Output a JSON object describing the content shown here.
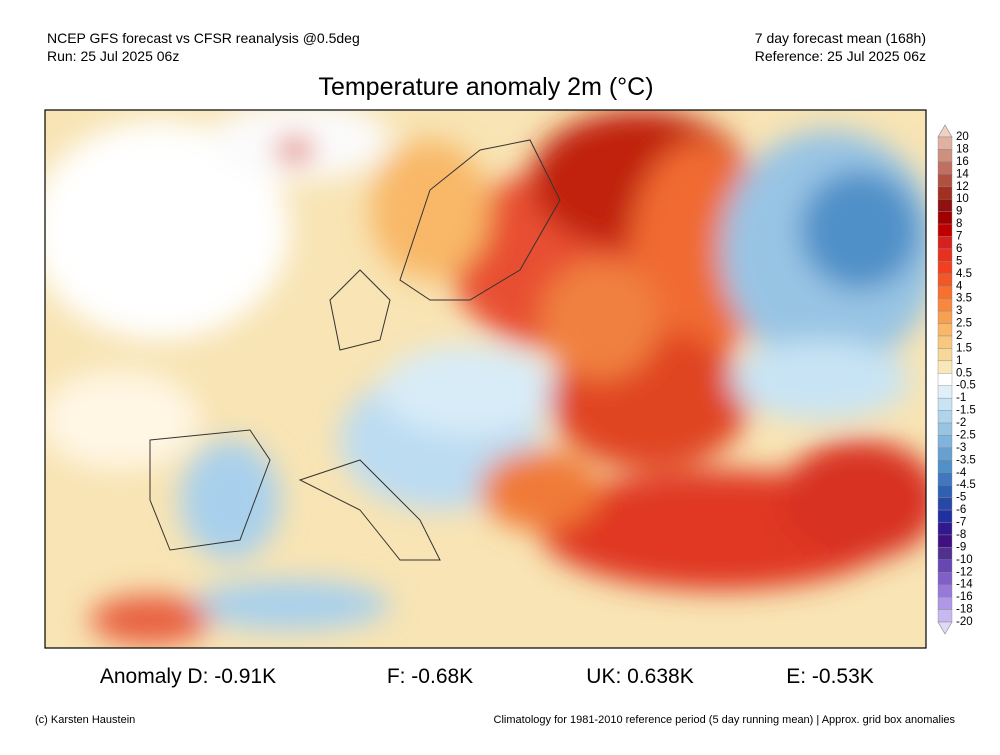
{
  "header": {
    "left_line1": "NCEP GFS forecast vs CFSR reanalysis @0.5deg",
    "left_line2": "Run: 25 Jul 2025 06z",
    "right_line1": "7 day forecast mean (168h)",
    "right_line2": "Reference: 25 Jul 2025 06z",
    "title": "Temperature anomaly 2m (°C)"
  },
  "colorbar": {
    "labels": [
      "20",
      "18",
      "16",
      "14",
      "12",
      "10",
      "9",
      "8",
      "7",
      "6",
      "5",
      "4.5",
      "4",
      "3.5",
      "3",
      "2.5",
      "2",
      "1.5",
      "1",
      "0.5",
      "-0.5",
      "-1",
      "-1.5",
      "-2",
      "-2.5",
      "-3",
      "-3.5",
      "-4",
      "-4.5",
      "-5",
      "-6",
      "-7",
      "-8",
      "-9",
      "-10",
      "-12",
      "-14",
      "-16",
      "-18",
      "-20"
    ],
    "colors": [
      "#f0d0c0",
      "#e0b0a0",
      "#d09080",
      "#c07060",
      "#b05040",
      "#a03020",
      "#901010",
      "#a00000",
      "#c00000",
      "#d82020",
      "#e83020",
      "#f04020",
      "#f05828",
      "#f87030",
      "#f88840",
      "#f8a050",
      "#f8b868",
      "#f8c880",
      "#f8d898",
      "#f8e8b8",
      "#ffffff",
      "#e0f0f8",
      "#c8e4f4",
      "#b0d4ec",
      "#98c4e4",
      "#80b4dc",
      "#68a0d0",
      "#5090c8",
      "#4078c0",
      "#3060b0",
      "#2848a8",
      "#2030a0",
      "#301890",
      "#401080",
      "#503090",
      "#6848b0",
      "#8060c8",
      "#9878d8",
      "#b098e8",
      "#c8b8f0",
      "#e0d8f8"
    ]
  },
  "anomalies": [
    "Anomaly D: -0.91K",
    "F: -0.68K",
    "UK: 0.638K",
    "E: -0.53K"
  ],
  "footer": {
    "credit": "(c) Karsten Haustein",
    "note": "Climatology for 1981-2010 reference period (5 day running mean) | Approx. grid box anomalies"
  }
}
